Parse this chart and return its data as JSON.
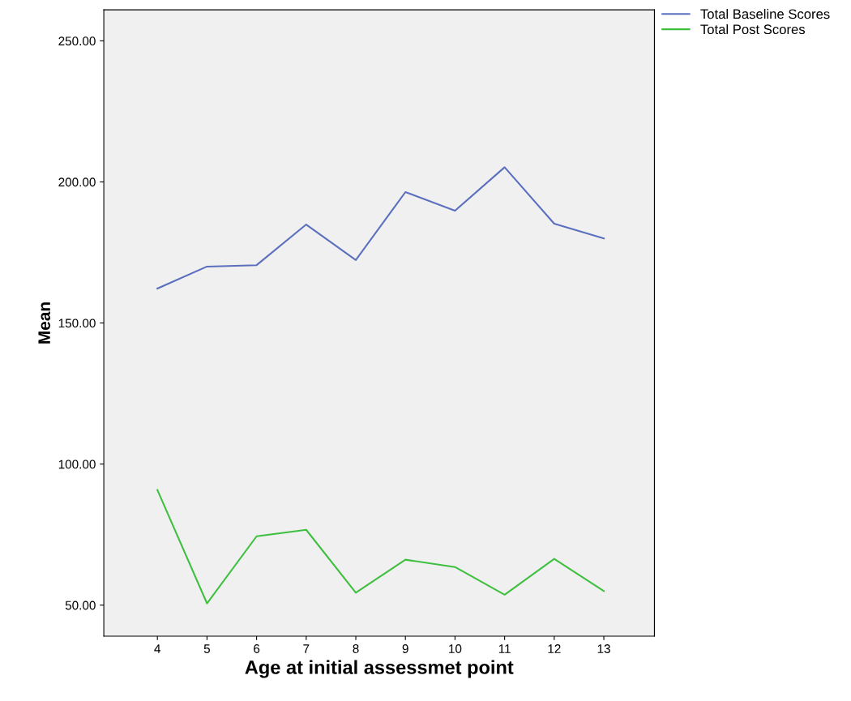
{
  "chart_data": {
    "type": "line",
    "xlabel": "Age at initial assessmet point",
    "ylabel": "Mean",
    "categories": [
      "4",
      "5",
      "6",
      "7",
      "8",
      "9",
      "10",
      "11",
      "12",
      "13"
    ],
    "series": [
      {
        "name": "Total Baseline Scores",
        "color": "#5b6fbf",
        "values": [
          162.2,
          170.0,
          170.5,
          184.9,
          172.3,
          196.4,
          189.8,
          205.2,
          185.2,
          180.0
        ]
      },
      {
        "name": "Total Post Scores",
        "color": "#3fbf3f",
        "values": [
          90.8,
          50.6,
          74.4,
          76.7,
          54.4,
          66.1,
          63.5,
          53.7,
          66.4,
          55.0
        ]
      }
    ],
    "ylim": [
      39,
      261
    ],
    "yticks": [
      {
        "value": 50,
        "label": "50.00"
      },
      {
        "value": 100,
        "label": "100.00"
      },
      {
        "value": 150,
        "label": "150.00"
      },
      {
        "value": 200,
        "label": "200.00"
      },
      {
        "value": 250,
        "label": "250.00"
      }
    ],
    "grid": false,
    "legend": "top right",
    "marker": "none",
    "line_style": "solid"
  }
}
